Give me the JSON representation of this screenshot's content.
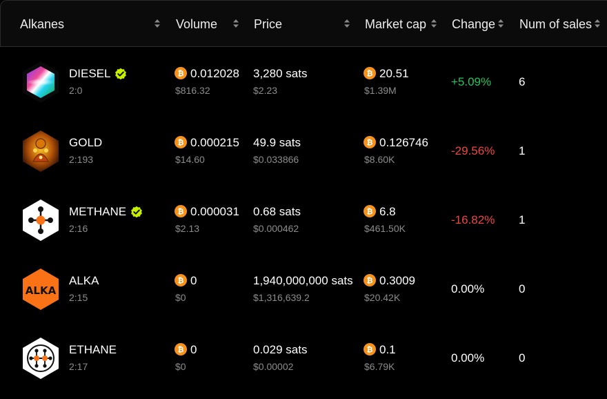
{
  "columns": {
    "alkanes": "Alkanes",
    "volume": "Volume",
    "price": "Price",
    "market_cap": "Market cap",
    "change": "Change",
    "num_sales": "Num of sales"
  },
  "colors": {
    "positive": "#22c55e",
    "negative": "#ef4444",
    "bitcoin": "#f7931a",
    "verified": "#c6f000"
  },
  "rows": [
    {
      "name": "DIESEL",
      "id": "2:0",
      "verified": true,
      "logo": "diesel-logo",
      "volume_btc": "0.012028",
      "volume_usd": "$816.32",
      "price_sats": "3,280 sats",
      "price_usd": "$2.23",
      "mcap_btc": "20.51",
      "mcap_usd": "$1.39M",
      "change": "+5.09%",
      "change_dir": "pos",
      "sales": "6"
    },
    {
      "name": "GOLD",
      "id": "2:193",
      "verified": false,
      "logo": "gold-logo",
      "volume_btc": "0.000215",
      "volume_usd": "$14.60",
      "price_sats": "49.9 sats",
      "price_usd": "$0.033866",
      "mcap_btc": "0.126746",
      "mcap_usd": "$8.60K",
      "change": "-29.56%",
      "change_dir": "neg",
      "sales": "1"
    },
    {
      "name": "METHANE",
      "id": "2:16",
      "verified": true,
      "logo": "methane-logo",
      "volume_btc": "0.000031",
      "volume_usd": "$2.13",
      "price_sats": "0.68 sats",
      "price_usd": "$0.000462",
      "mcap_btc": "6.8",
      "mcap_usd": "$461.50K",
      "change": "-16.82%",
      "change_dir": "neg",
      "sales": "1"
    },
    {
      "name": "ALKA",
      "id": "2:15",
      "verified": false,
      "logo": "alka-logo",
      "logo_text": "ALKA",
      "volume_btc": "0",
      "volume_usd": "$0",
      "price_sats": "1,940,000,000 sats",
      "price_usd": "$1,316,639.2",
      "mcap_btc": "0.3009",
      "mcap_usd": "$20.42K",
      "change": "0.00%",
      "change_dir": "neutral",
      "sales": "0"
    },
    {
      "name": "ETHANE",
      "id": "2:17",
      "verified": false,
      "logo": "ethane-logo",
      "volume_btc": "0",
      "volume_usd": "$0",
      "price_sats": "0.029 sats",
      "price_usd": "$0.00002",
      "mcap_btc": "0.1",
      "mcap_usd": "$6.79K",
      "change": "0.00%",
      "change_dir": "neutral",
      "sales": "0"
    }
  ]
}
